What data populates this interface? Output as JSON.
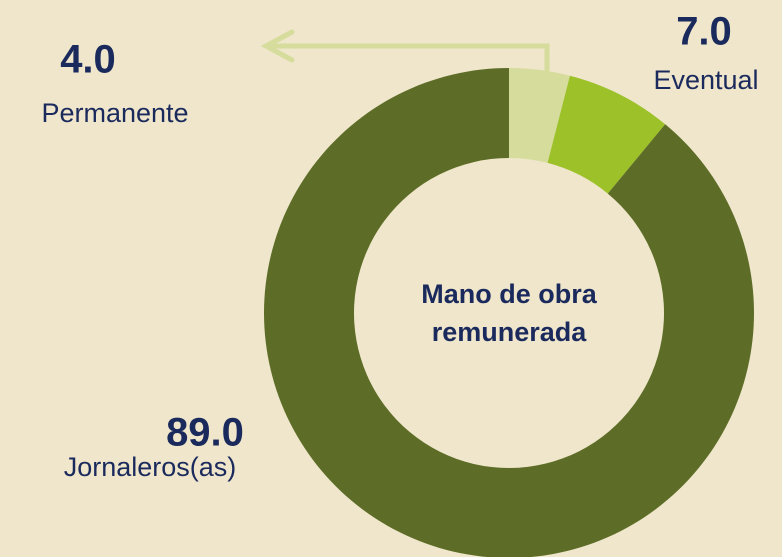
{
  "chart_data": {
    "type": "donut",
    "center_label": [
      "Mano de obra",
      "remunerada"
    ],
    "categories": [
      "Permanente",
      "Eventual",
      "Jornaleros(as)"
    ],
    "values": [
      4.0,
      7.0,
      89.0
    ],
    "value_labels": [
      "4.0",
      "7.0",
      "89.0"
    ],
    "colors": [
      "#d6dc9c",
      "#9cc129",
      "#5d6d27"
    ]
  }
}
